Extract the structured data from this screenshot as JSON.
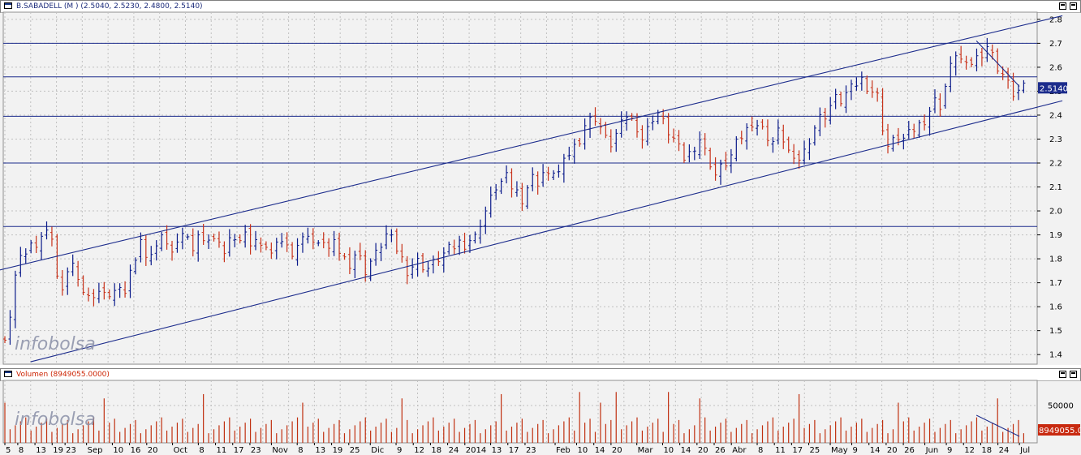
{
  "price_panel": {
    "title": "B.SABADELL (M ) (2.5040, 2.5230, 2.4800, 2.5140)",
    "last_price_label": "2.5140"
  },
  "volume_panel": {
    "title": "Volumen (8949055.0000)",
    "last_volume_label": "8949055.0",
    "y_tick_label": "50000"
  },
  "watermark": "infobolsa",
  "colors": {
    "up_bar": "#0a1a8a",
    "down_bar": "#c8321a",
    "grid": "#c0c0c0",
    "panel_bg": "#f2f2f2",
    "line": "#1c2c8c",
    "volume_bar": "#c03010",
    "badge_bg": "#1c2c8c",
    "volume_badge_bg": "#c82a10"
  },
  "x_axis_labels": [
    {
      "text": "5",
      "i": 0
    },
    {
      "text": "8",
      "i": 3
    },
    {
      "text": "13",
      "i": 7
    },
    {
      "text": "19",
      "i": 11
    },
    {
      "text": "23",
      "i": 14
    },
    {
      "text": "Sep",
      "i": 19
    },
    {
      "text": "10",
      "i": 25
    },
    {
      "text": "16",
      "i": 29
    },
    {
      "text": "20",
      "i": 33
    },
    {
      "text": "Oct",
      "i": 39
    },
    {
      "text": "8",
      "i": 45
    },
    {
      "text": "11",
      "i": 49
    },
    {
      "text": "17",
      "i": 53
    },
    {
      "text": "23",
      "i": 57
    },
    {
      "text": "Nov",
      "i": 62
    },
    {
      "text": "8",
      "i": 68
    },
    {
      "text": "13",
      "i": 72
    },
    {
      "text": "19",
      "i": 76
    },
    {
      "text": "25",
      "i": 80
    },
    {
      "text": "Dic",
      "i": 85
    },
    {
      "text": "9",
      "i": 91
    },
    {
      "text": "12",
      "i": 95
    },
    {
      "text": "18",
      "i": 99
    },
    {
      "text": "24",
      "i": 103
    },
    {
      "text": "2014",
      "i": 107
    },
    {
      "text": "13",
      "i": 113
    },
    {
      "text": "17",
      "i": 117
    },
    {
      "text": "23",
      "i": 121
    },
    {
      "text": "Feb",
      "i": 128
    },
    {
      "text": "10",
      "i": 133
    },
    {
      "text": "14",
      "i": 137
    },
    {
      "text": "20",
      "i": 141
    },
    {
      "text": "Mar",
      "i": 147
    },
    {
      "text": "10",
      "i": 153
    },
    {
      "text": "14",
      "i": 157
    },
    {
      "text": "20",
      "i": 161
    },
    {
      "text": "26",
      "i": 165
    },
    {
      "text": "Abr",
      "i": 169
    },
    {
      "text": "8",
      "i": 175
    },
    {
      "text": "11",
      "i": 179
    },
    {
      "text": "17",
      "i": 183
    },
    {
      "text": "25",
      "i": 187
    },
    {
      "text": "May",
      "i": 192
    },
    {
      "text": "9",
      "i": 197
    },
    {
      "text": "14",
      "i": 201
    },
    {
      "text": "20",
      "i": 205
    },
    {
      "text": "26",
      "i": 209
    },
    {
      "text": "Jun",
      "i": 214
    },
    {
      "text": "9",
      "i": 219
    },
    {
      "text": "12",
      "i": 223
    },
    {
      "text": "18",
      "i": 227
    },
    {
      "text": "24",
      "i": 231
    },
    {
      "text": "Jul",
      "i": 236
    }
  ],
  "chart_data": [
    {
      "type": "ohlc",
      "title": "B.SABADELL (M ) (2.5040, 2.5230, 2.4800, 2.5140)",
      "y_ticks": [
        1.4,
        1.5,
        1.6,
        1.7,
        1.8,
        1.9,
        2.0,
        2.1,
        2.2,
        2.3,
        2.4,
        2.5,
        2.6,
        2.7,
        2.8
      ],
      "ylim": [
        1.36,
        2.83
      ],
      "grid": true,
      "last": {
        "open": 2.504,
        "high": 2.523,
        "low": 2.48,
        "close": 2.514
      },
      "horizontal_levels": [
        2.7,
        2.56,
        2.395,
        2.2,
        1.935
      ],
      "trend_lines": [
        {
          "start": {
            "i": -2,
            "v": 1.75
          },
          "end": {
            "i": 246,
            "v": 2.815
          }
        },
        {
          "start": {
            "i": 6,
            "v": 1.37
          },
          "end": {
            "i": 246,
            "v": 2.46
          }
        },
        {
          "start": {
            "i": 226,
            "v": 2.71
          },
          "end": {
            "i": 236,
            "v": 2.52
          }
        }
      ],
      "close_path": [
        [
          0,
          1.48
        ],
        [
          1,
          1.56
        ],
        [
          2,
          1.72
        ],
        [
          3,
          1.83
        ],
        [
          4,
          1.82
        ],
        [
          5,
          1.85
        ],
        [
          6,
          1.86
        ],
        [
          7,
          1.89
        ],
        [
          8,
          1.9
        ],
        [
          9,
          1.89
        ],
        [
          10,
          1.72
        ],
        [
          11,
          1.69
        ],
        [
          12,
          1.75
        ],
        [
          13,
          1.77
        ],
        [
          14,
          1.73
        ],
        [
          15,
          1.66
        ],
        [
          16,
          1.63
        ],
        [
          17,
          1.65
        ],
        [
          18,
          1.66
        ],
        [
          19,
          1.64
        ],
        [
          20,
          1.65
        ],
        [
          21,
          1.66
        ],
        [
          22,
          1.7
        ],
        [
          23,
          1.66
        ],
        [
          24,
          1.74
        ],
        [
          25,
          1.81
        ],
        [
          26,
          1.88
        ],
        [
          27,
          1.79
        ],
        [
          28,
          1.83
        ],
        [
          29,
          1.85
        ],
        [
          30,
          1.88
        ],
        [
          31,
          1.87
        ],
        [
          32,
          1.82
        ],
        [
          33,
          1.89
        ],
        [
          34,
          1.91
        ],
        [
          35,
          1.88
        ],
        [
          36,
          1.85
        ],
        [
          37,
          1.9
        ],
        [
          38,
          1.86
        ],
        [
          39,
          1.89
        ],
        [
          40,
          1.88
        ],
        [
          41,
          1.85
        ],
        [
          42,
          1.83
        ],
        [
          43,
          1.88
        ],
        [
          44,
          1.9
        ],
        [
          45,
          1.88
        ],
        [
          46,
          1.9
        ],
        [
          47,
          1.87
        ],
        [
          48,
          1.88
        ],
        [
          49,
          1.84
        ],
        [
          50,
          1.86
        ],
        [
          51,
          1.82
        ],
        [
          52,
          1.85
        ],
        [
          53,
          1.88
        ],
        [
          54,
          1.85
        ],
        [
          55,
          1.83
        ],
        [
          56,
          1.86
        ],
        [
          57,
          1.88
        ],
        [
          58,
          1.91
        ],
        [
          59,
          1.87
        ],
        [
          60,
          1.85
        ],
        [
          61,
          1.88
        ],
        [
          62,
          1.84
        ],
        [
          63,
          1.86
        ],
        [
          64,
          1.83
        ],
        [
          65,
          1.8
        ],
        [
          66,
          1.78
        ],
        [
          67,
          1.82
        ],
        [
          68,
          1.8
        ],
        [
          69,
          1.75
        ],
        [
          70,
          1.79
        ],
        [
          71,
          1.82
        ],
        [
          72,
          1.86
        ],
        [
          73,
          1.9
        ],
        [
          74,
          1.88
        ],
        [
          75,
          1.84
        ],
        [
          76,
          1.8
        ],
        [
          77,
          1.75
        ],
        [
          78,
          1.77
        ],
        [
          79,
          1.79
        ],
        [
          80,
          1.77
        ],
        [
          81,
          1.76
        ],
        [
          82,
          1.78
        ],
        [
          83,
          1.8
        ],
        [
          84,
          1.82
        ],
        [
          85,
          1.84
        ],
        [
          86,
          1.85
        ],
        [
          87,
          1.87
        ],
        [
          88,
          1.86
        ],
        [
          89,
          1.88
        ],
        [
          90,
          1.89
        ],
        [
          91,
          1.95
        ],
        [
          92,
          2.0
        ],
        [
          93,
          2.05
        ],
        [
          94,
          2.1
        ],
        [
          95,
          2.12
        ],
        [
          96,
          2.14
        ],
        [
          97,
          2.1
        ],
        [
          98,
          2.08
        ],
        [
          99,
          2.05
        ],
        [
          100,
          2.1
        ],
        [
          101,
          2.14
        ],
        [
          102,
          2.12
        ],
        [
          103,
          2.16
        ],
        [
          104,
          2.14
        ],
        [
          105,
          2.17
        ],
        [
          106,
          2.16
        ],
        [
          107,
          2.2
        ],
        [
          108,
          2.24
        ],
        [
          109,
          2.27
        ],
        [
          110,
          2.3
        ],
        [
          111,
          2.36
        ],
        [
          112,
          2.38
        ],
        [
          113,
          2.39
        ],
        [
          114,
          2.35
        ],
        [
          115,
          2.3
        ],
        [
          116,
          2.28
        ],
        [
          117,
          2.32
        ],
        [
          118,
          2.36
        ],
        [
          119,
          2.4
        ],
        [
          120,
          2.38
        ],
        [
          121,
          2.35
        ],
        [
          122,
          2.3
        ],
        [
          123,
          2.34
        ],
        [
          124,
          2.39
        ],
        [
          125,
          2.41
        ],
        [
          126,
          2.37
        ],
        [
          127,
          2.33
        ],
        [
          128,
          2.3
        ],
        [
          129,
          2.26
        ],
        [
          130,
          2.22
        ],
        [
          131,
          2.24
        ],
        [
          132,
          2.27
        ],
        [
          133,
          2.3
        ],
        [
          134,
          2.25
        ],
        [
          135,
          2.2
        ],
        [
          136,
          2.15
        ],
        [
          137,
          2.18
        ],
        [
          138,
          2.2
        ],
        [
          139,
          2.23
        ],
        [
          140,
          2.28
        ],
        [
          141,
          2.31
        ],
        [
          142,
          2.34
        ],
        [
          143,
          2.37
        ],
        [
          144,
          2.36
        ],
        [
          145,
          2.34
        ],
        [
          146,
          2.31
        ],
        [
          147,
          2.29
        ],
        [
          148,
          2.33
        ],
        [
          149,
          2.3
        ],
        [
          150,
          2.25
        ],
        [
          151,
          2.2
        ],
        [
          152,
          2.22
        ],
        [
          153,
          2.25
        ],
        [
          154,
          2.3
        ],
        [
          155,
          2.35
        ],
        [
          156,
          2.39
        ],
        [
          157,
          2.4
        ],
        [
          158,
          2.44
        ],
        [
          159,
          2.47
        ],
        [
          160,
          2.46
        ],
        [
          161,
          2.49
        ],
        [
          162,
          2.51
        ],
        [
          163,
          2.53
        ],
        [
          164,
          2.55
        ],
        [
          165,
          2.52
        ],
        [
          166,
          2.5
        ],
        [
          167,
          2.48
        ],
        [
          168,
          2.35
        ],
        [
          169,
          2.27
        ],
        [
          170,
          2.29
        ],
        [
          171,
          2.31
        ],
        [
          172,
          2.3
        ],
        [
          173,
          2.32
        ],
        [
          174,
          2.34
        ],
        [
          175,
          2.36
        ],
        [
          176,
          2.38
        ],
        [
          177,
          2.42
        ],
        [
          178,
          2.46
        ],
        [
          179,
          2.44
        ],
        [
          180,
          2.52
        ],
        [
          181,
          2.6
        ],
        [
          182,
          2.66
        ],
        [
          183,
          2.63
        ],
        [
          184,
          2.6
        ],
        [
          185,
          2.62
        ],
        [
          186,
          2.64
        ],
        [
          187,
          2.66
        ],
        [
          188,
          2.69
        ],
        [
          189,
          2.65
        ],
        [
          190,
          2.6
        ],
        [
          191,
          2.57
        ],
        [
          192,
          2.53
        ],
        [
          193,
          2.49
        ],
        [
          194,
          2.5
        ],
        [
          195,
          2.514
        ]
      ]
    },
    {
      "type": "bar",
      "title": "Volumen (8949055.0000)",
      "y_ticks": [
        50000
      ],
      "last_value": 8949055,
      "note": "daily volume bars; relative heights shown (peak ~1.0)"
    }
  ]
}
